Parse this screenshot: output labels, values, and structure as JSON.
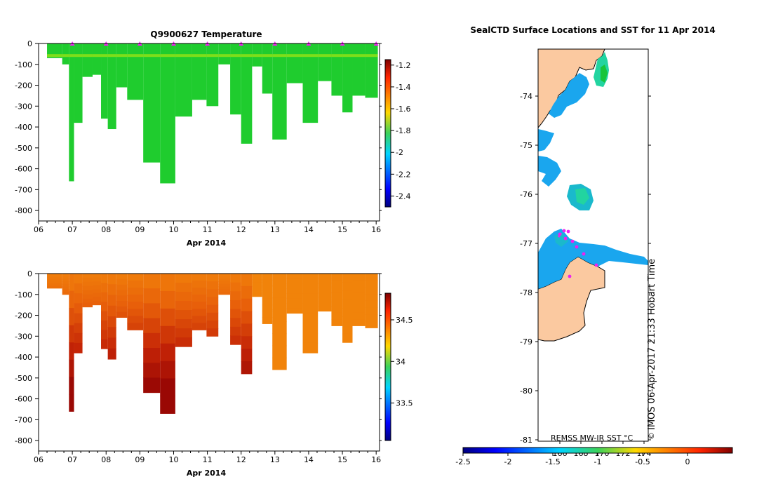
{
  "chart_data": [
    {
      "type": "heatmap",
      "title": "Q9900627  Temperature",
      "xlabel": "Apr 2014",
      "ylabel": "",
      "x_ticks": [
        "06",
        "07",
        "08",
        "09",
        "10",
        "11",
        "12",
        "13",
        "14",
        "15",
        "16"
      ],
      "xlim": [
        6,
        16.1
      ],
      "y_ticks": [
        "0",
        "-100",
        "-200",
        "-300",
        "-400",
        "-500",
        "-600",
        "-700",
        "-800"
      ],
      "ylim": [
        -850,
        0
      ],
      "colorbar": {
        "ticks": [
          "-1.2",
          "-1.4",
          "-1.6",
          "-1.8",
          "-2",
          "-2.2",
          "-2.4"
        ],
        "range": [
          -2.5,
          -1.15
        ]
      },
      "profile_markers_day": [
        7.0,
        8.0,
        9.0,
        10.0,
        11.0,
        12.0,
        13.0,
        14.0,
        15.0,
        16.0
      ],
      "profiles": [
        {
          "day": 6.55,
          "depth": 70
        },
        {
          "day": 6.85,
          "depth": 100
        },
        {
          "day": 6.95,
          "depth": 660
        },
        {
          "day": 7.15,
          "depth": 380
        },
        {
          "day": 7.45,
          "depth": 160
        },
        {
          "day": 7.75,
          "depth": 150
        },
        {
          "day": 7.95,
          "depth": 360
        },
        {
          "day": 8.15,
          "depth": 410
        },
        {
          "day": 8.45,
          "depth": 210
        },
        {
          "day": 8.8,
          "depth": 270
        },
        {
          "day": 9.4,
          "depth": 570
        },
        {
          "day": 9.8,
          "depth": 670
        },
        {
          "day": 10.3,
          "depth": 350
        },
        {
          "day": 10.8,
          "depth": 270
        },
        {
          "day": 11.15,
          "depth": 300
        },
        {
          "day": 11.5,
          "depth": 100
        },
        {
          "day": 11.85,
          "depth": 340
        },
        {
          "day": 12.15,
          "depth": 480
        },
        {
          "day": 12.5,
          "depth": 110
        },
        {
          "day": 12.75,
          "depth": 240
        },
        {
          "day": 13.1,
          "depth": 460
        },
        {
          "day": 13.6,
          "depth": 190
        },
        {
          "day": 14.05,
          "depth": 380
        },
        {
          "day": 14.5,
          "depth": 180
        },
        {
          "day": 14.85,
          "depth": 250
        },
        {
          "day": 15.15,
          "depth": 330
        },
        {
          "day": 15.45,
          "depth": 250
        },
        {
          "day": 15.9,
          "depth": 260
        }
      ]
    },
    {
      "type": "heatmap",
      "title": "",
      "xlabel": "Apr 2014",
      "ylabel": "",
      "x_ticks": [
        "06",
        "07",
        "08",
        "09",
        "10",
        "11",
        "12",
        "13",
        "14",
        "15",
        "16"
      ],
      "xlim": [
        6,
        16.1
      ],
      "y_ticks": [
        "0",
        "-100",
        "-200",
        "-300",
        "-400",
        "-500",
        "-600",
        "-700",
        "-800"
      ],
      "ylim": [
        -850,
        0
      ],
      "colorbar": {
        "ticks": [
          "34.5",
          "34",
          "33.5"
        ],
        "range": [
          33.05,
          34.82
        ]
      }
    },
    {
      "type": "map",
      "title": "SealCTD Surface Locations and SST for 11 Apr 2014",
      "lat_ticks": [
        "-74",
        "-75",
        "-76",
        "-77",
        "-78",
        "-79",
        "-80",
        "-81"
      ],
      "lon_ticks": [
        "166",
        "168",
        "170",
        "172",
        "174"
      ],
      "colorbar": {
        "label": "REMSS MW-IR SST °C",
        "ticks": [
          "-2.5",
          "-2",
          "-1.5",
          "-1",
          "-0.5",
          "0"
        ],
        "range": [
          -2.5,
          0.5
        ]
      },
      "credit": "IMOS 06-Apr-2017 21:33 Hobart Time",
      "copyright_symbol": "©"
    }
  ]
}
